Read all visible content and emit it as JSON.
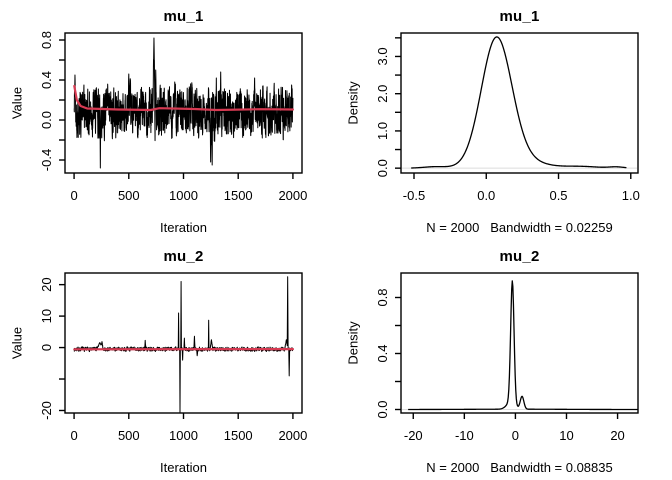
{
  "figure": {
    "background": "#ffffff",
    "curve_color": "#000000",
    "mean_line_color": "#d63a52",
    "zero_line_color": "#dcdcdc",
    "axis_color": "#000000"
  },
  "chart_data": [
    {
      "id": "mu1-trace",
      "type": "line",
      "title": "mu_1",
      "xlabel": "Iteration",
      "ylabel": "Value",
      "xlim": [
        -83,
        2083
      ],
      "ylim": [
        -0.53,
        0.87
      ],
      "xticks": [
        {
          "v": 0,
          "label": "0"
        },
        {
          "v": 500,
          "label": "500"
        },
        {
          "v": 1000,
          "label": "1000"
        },
        {
          "v": 1500,
          "label": "1500"
        },
        {
          "v": 2000,
          "label": "2000"
        }
      ],
      "yticks": [
        {
          "v": -0.4,
          "label": "-0.4"
        },
        {
          "v": -0.2,
          "label": ""
        },
        {
          "v": 0.0,
          "label": "0.0"
        },
        {
          "v": 0.2,
          "label": ""
        },
        {
          "v": 0.4,
          "label": "0.4"
        },
        {
          "v": 0.6,
          "label": ""
        },
        {
          "v": 0.8,
          "label": "0.8"
        }
      ],
      "grid": false,
      "series": {
        "kind": "trace",
        "n": 2000,
        "mean": 0.08,
        "ar": 0.55,
        "noise": 0.11,
        "seed": 42,
        "events": [
          [
            8,
            0.45,
            6
          ],
          [
            240,
            -0.48,
            3
          ],
          [
            500,
            0.46,
            5
          ],
          [
            730,
            0.82,
            10
          ],
          [
            746,
            0.5,
            6
          ],
          [
            920,
            0.38,
            5
          ],
          [
            1248,
            -0.42,
            6
          ],
          [
            1262,
            -0.45,
            4
          ],
          [
            1300,
            0.42,
            5
          ],
          [
            1340,
            0.48,
            4
          ],
          [
            1650,
            0.42,
            4
          ],
          [
            1988,
            0.35,
            4
          ]
        ]
      },
      "mean_line": [
        [
          2,
          0.34
        ],
        [
          25,
          0.2
        ],
        [
          60,
          0.14
        ],
        [
          120,
          0.115
        ],
        [
          400,
          0.105
        ],
        [
          700,
          0.1
        ],
        [
          780,
          0.118
        ],
        [
          1100,
          0.11
        ],
        [
          1300,
          0.1
        ],
        [
          1700,
          0.108
        ],
        [
          2000,
          0.105
        ]
      ]
    },
    {
      "id": "mu1-density",
      "type": "line",
      "title": "mu_1",
      "xlabel": "N = 2000   Bandwidth = 0.02259",
      "ylabel": "Density",
      "xlim": [
        -0.59,
        1.05
      ],
      "ylim": [
        -0.13,
        3.63
      ],
      "xticks": [
        {
          "v": -0.5,
          "label": "-0.5"
        },
        {
          "v": 0.0,
          "label": "0.0"
        },
        {
          "v": 0.5,
          "label": "0.5"
        },
        {
          "v": 1.0,
          "label": "1.0"
        }
      ],
      "yticks": [
        {
          "v": 0.0,
          "label": "0.0"
        },
        {
          "v": 0.5,
          "label": ""
        },
        {
          "v": 1.0,
          "label": "1.0"
        },
        {
          "v": 1.5,
          "label": ""
        },
        {
          "v": 2.0,
          "label": "2.0"
        },
        {
          "v": 2.5,
          "label": ""
        },
        {
          "v": 3.0,
          "label": "3.0"
        },
        {
          "v": 3.5,
          "label": ""
        }
      ],
      "grid": false,
      "zero_line": true,
      "peak": {
        "x": 0.07,
        "y": 3.52
      },
      "n": 2000,
      "bandwidth": 0.02259,
      "series": {
        "kind": "density",
        "range": [
          -0.52,
          0.97
        ],
        "components": [
          [
            0.07,
            0.105,
            0.88
          ],
          [
            0.2,
            0.16,
            0.1
          ],
          [
            -0.35,
            0.08,
            0.008
          ],
          [
            0.65,
            0.12,
            0.014
          ],
          [
            0.9,
            0.05,
            0.004
          ]
        ]
      }
    },
    {
      "id": "mu2-trace",
      "type": "line",
      "title": "mu_2",
      "xlabel": "Iteration",
      "ylabel": "Value",
      "xlim": [
        -83,
        2083
      ],
      "ylim": [
        -20.8,
        23.7
      ],
      "xticks": [
        {
          "v": 0,
          "label": "0"
        },
        {
          "v": 500,
          "label": "500"
        },
        {
          "v": 1000,
          "label": "1000"
        },
        {
          "v": 1500,
          "label": "1500"
        },
        {
          "v": 2000,
          "label": "2000"
        }
      ],
      "yticks": [
        {
          "v": -20,
          "label": "-20"
        },
        {
          "v": -10,
          "label": ""
        },
        {
          "v": 0,
          "label": "0"
        },
        {
          "v": 10,
          "label": "10"
        },
        {
          "v": 20,
          "label": "20"
        }
      ],
      "grid": false,
      "series": {
        "kind": "trace",
        "n": 2000,
        "mean": -0.5,
        "ar": 0.5,
        "noise": 0.3,
        "seed": 7,
        "events": [
          [
            235,
            1.6,
            25
          ],
          [
            255,
            1.9,
            10
          ],
          [
            650,
            2.3,
            5
          ],
          [
            955,
            11,
            3
          ],
          [
            968,
            -20.5,
            3
          ],
          [
            978,
            21,
            3
          ],
          [
            992,
            -4,
            4
          ],
          [
            1008,
            3,
            4
          ],
          [
            1100,
            3.6,
            5
          ],
          [
            1125,
            -2.6,
            5
          ],
          [
            1230,
            8.7,
            3
          ],
          [
            1255,
            2.5,
            12
          ],
          [
            1940,
            2.5,
            15
          ],
          [
            1952,
            22.5,
            4
          ],
          [
            1966,
            -9,
            4
          ]
        ]
      },
      "mean_line": [
        [
          2,
          -0.55
        ],
        [
          2000,
          -0.5
        ]
      ]
    },
    {
      "id": "mu2-density",
      "type": "line",
      "title": "mu_2",
      "xlabel": "N = 2000   Bandwidth = 0.08835",
      "ylabel": "Density",
      "xlim": [
        -22.4,
        24.0
      ],
      "ylim": [
        -0.025,
        0.975
      ],
      "xticks": [
        {
          "v": -20,
          "label": "-20"
        },
        {
          "v": -10,
          "label": "-10"
        },
        {
          "v": 0,
          "label": "0"
        },
        {
          "v": 10,
          "label": "10"
        },
        {
          "v": 20,
          "label": "20"
        }
      ],
      "yticks": [
        {
          "v": 0.0,
          "label": "0.0"
        },
        {
          "v": 0.2,
          "label": ""
        },
        {
          "v": 0.4,
          "label": "0.4"
        },
        {
          "v": 0.6,
          "label": ""
        },
        {
          "v": 0.8,
          "label": "0.8"
        }
      ],
      "grid": false,
      "zero_line": true,
      "peak": {
        "x": -0.6,
        "y": 0.92
      },
      "n": 2000,
      "bandwidth": 0.08835,
      "series": {
        "kind": "density",
        "range": [
          -21.0,
          24.3
        ],
        "components": [
          [
            -0.6,
            0.33,
            0.72
          ],
          [
            -0.9,
            0.8,
            0.1
          ],
          [
            1.3,
            0.35,
            0.08
          ],
          [
            0,
            9,
            0.05
          ]
        ]
      }
    }
  ]
}
